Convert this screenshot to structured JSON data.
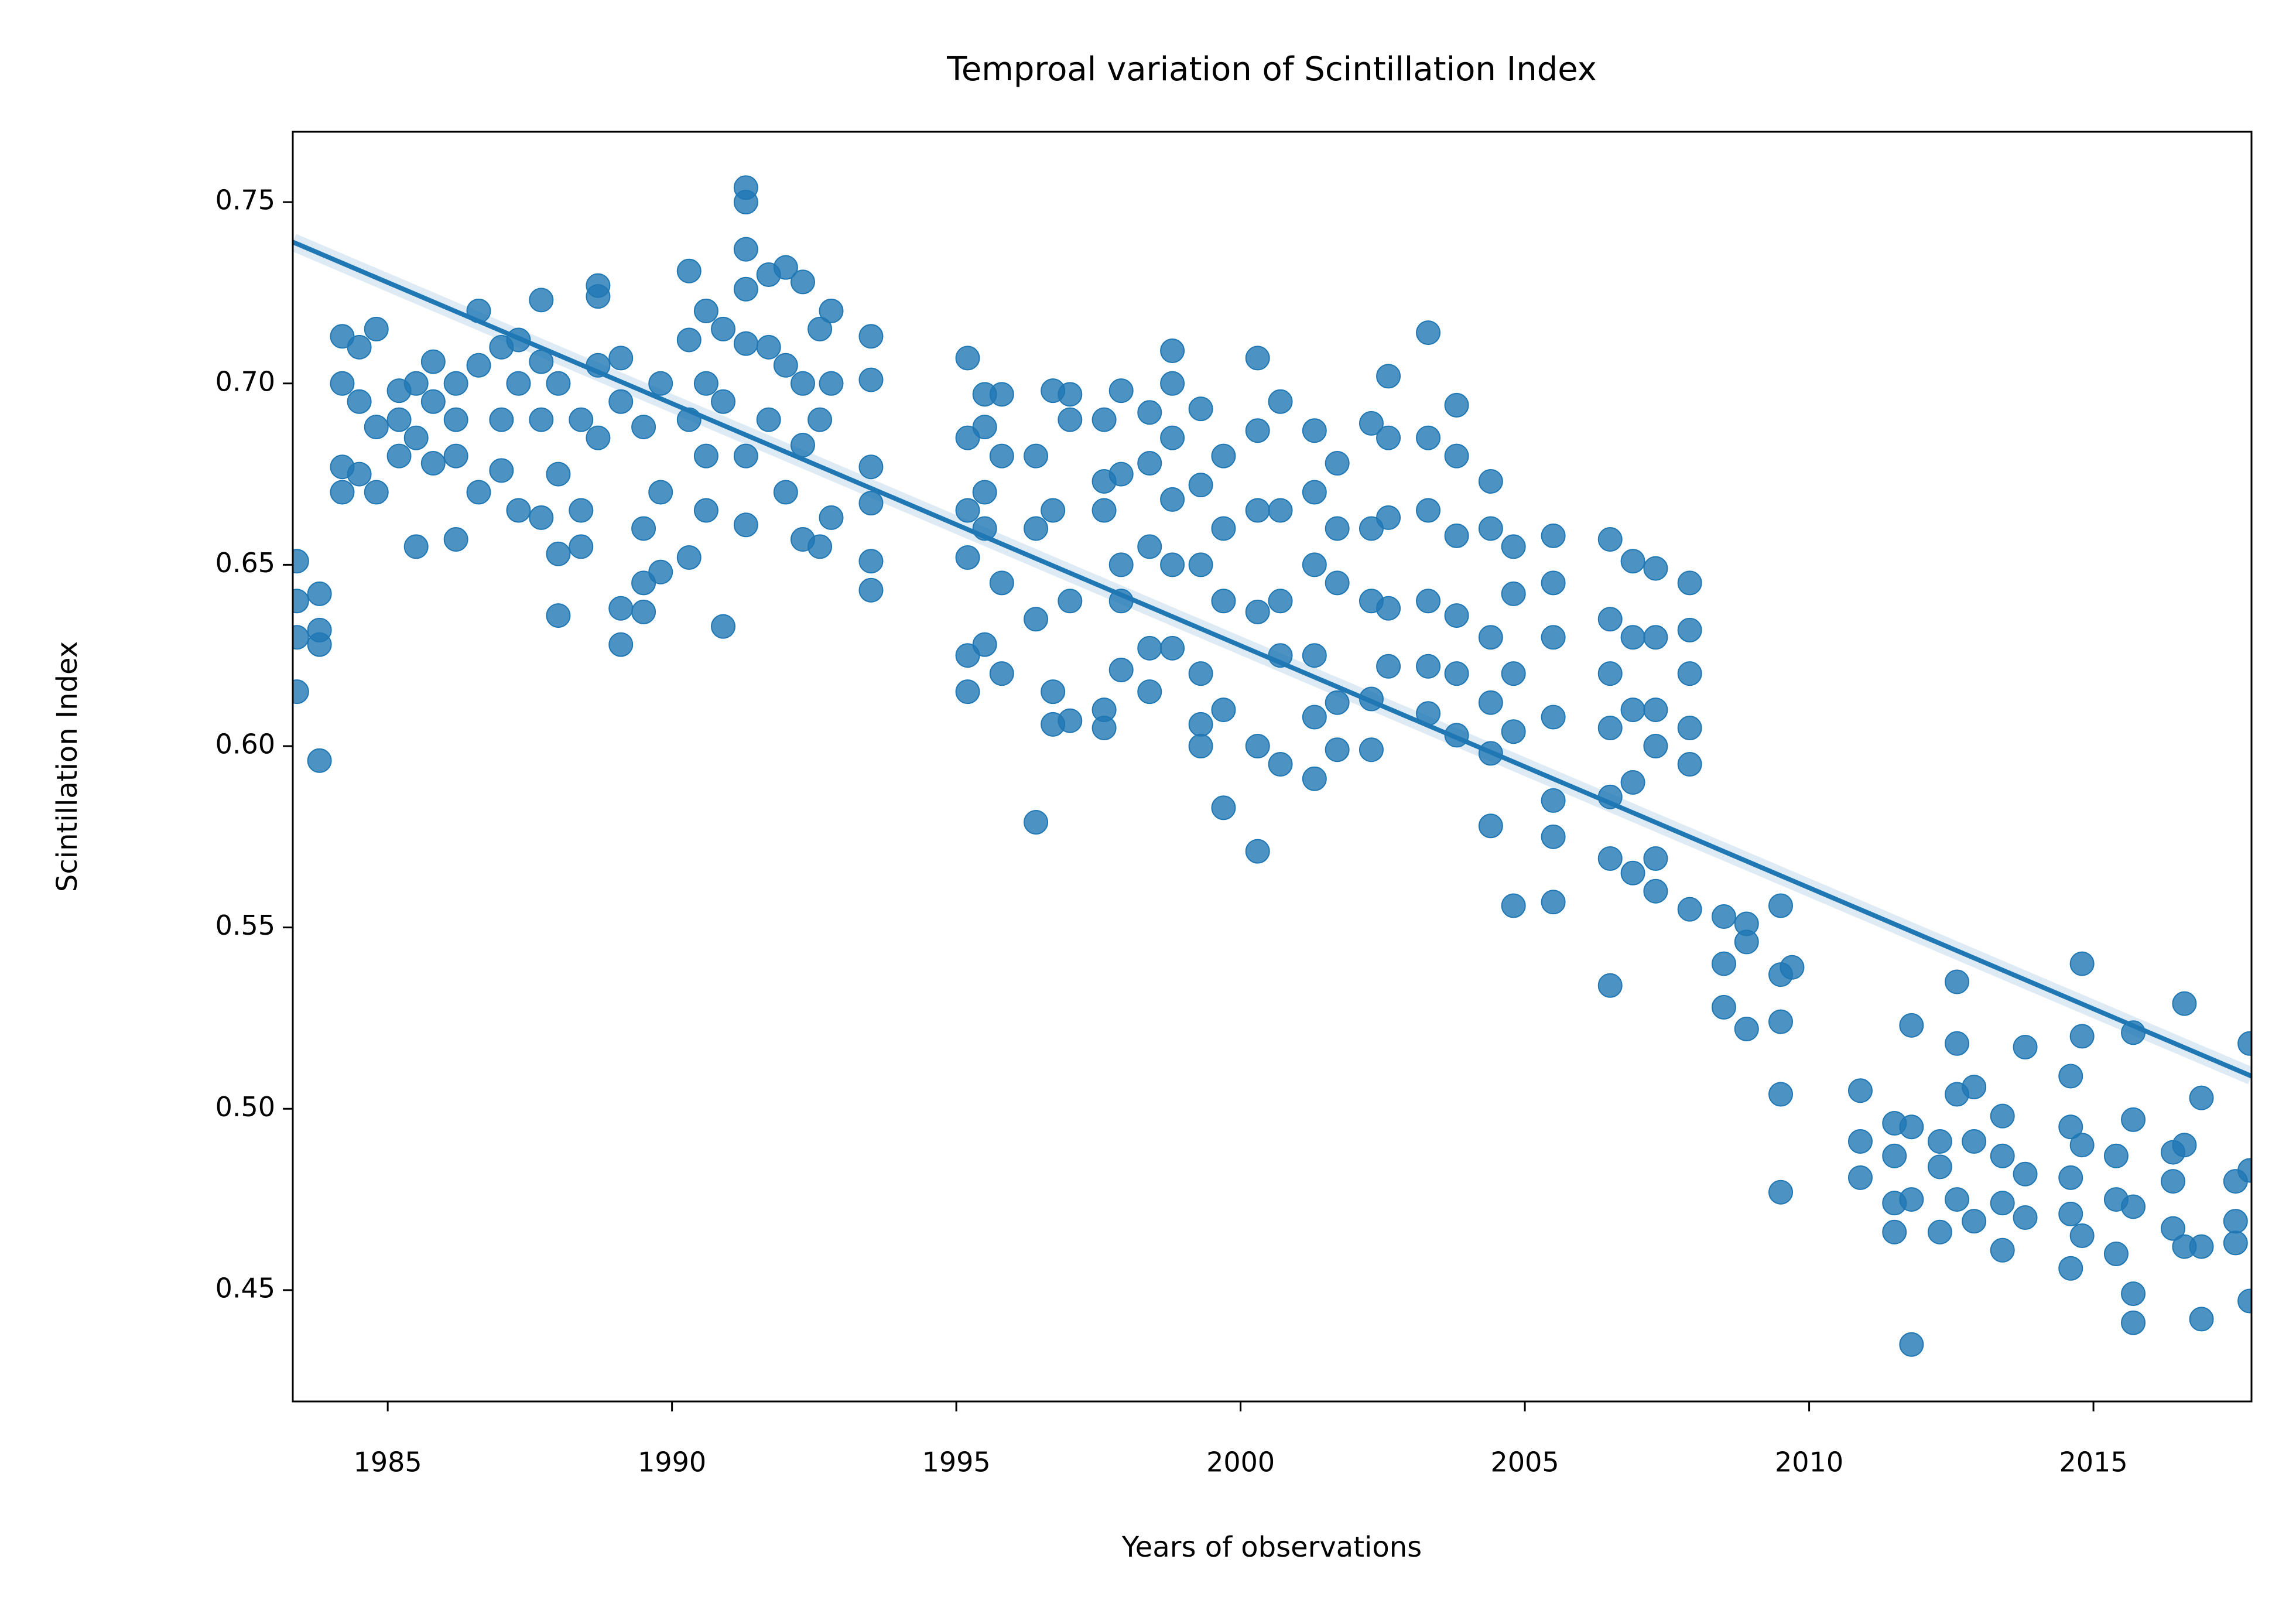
{
  "chart_data": {
    "type": "scatter",
    "title": "Temproal variation of Scintillation Index",
    "x_label": "Years of observations",
    "y_label": "Scintillation Index",
    "color": "#1f77b4",
    "xlim": [
      1983.33,
      2017.78
    ],
    "ylim": [
      0.4193,
      0.7694
    ],
    "xticks": [
      1985,
      1990,
      1995,
      2000,
      2005,
      2010,
      2015
    ],
    "yticks": [
      0.45,
      {
        "value": 0.5,
        "label": "0.50"
      },
      0.55,
      {
        "value": 0.6,
        "label": "0.60"
      },
      0.65,
      {
        "value": 0.7,
        "label": "0.70"
      },
      0.75
    ],
    "trend": {
      "x": [
        1983.33,
        2017.78
      ],
      "values": [
        0.739,
        0.509
      ]
    },
    "x": [
      1983.4,
      1983.4,
      1983.4,
      1983.4,
      1983.8,
      1983.8,
      1983.8,
      1983.8,
      1984.2,
      1984.2,
      1984.2,
      1984.2,
      1984.5,
      1984.5,
      1984.5,
      1984.8,
      1984.8,
      1984.8,
      1985.2,
      1985.2,
      1985.2,
      1985.5,
      1985.5,
      1985.5,
      1985.8,
      1985.8,
      1985.8,
      1986.2,
      1986.2,
      1986.2,
      1986.2,
      1986.6,
      1986.6,
      1986.6,
      1987,
      1987,
      1987,
      1987.3,
      1987.3,
      1987.3,
      1987.7,
      1987.7,
      1987.7,
      1987.7,
      1988,
      1988,
      1988,
      1988,
      1988.4,
      1988.4,
      1988.4,
      1988.7,
      1988.7,
      1988.7,
      1988.7,
      1989.1,
      1989.1,
      1989.1,
      1989.1,
      1989.5,
      1989.5,
      1989.5,
      1989.5,
      1989.8,
      1989.8,
      1989.8,
      1990.3,
      1990.3,
      1990.3,
      1990.3,
      1990.6,
      1990.6,
      1990.6,
      1990.6,
      1990.9,
      1990.9,
      1990.9,
      1991.3,
      1991.3,
      1991.3,
      1991.3,
      1991.3,
      1991.3,
      1991.3,
      1991.7,
      1991.7,
      1991.7,
      1992,
      1992,
      1992,
      1992.3,
      1992.3,
      1992.3,
      1992.3,
      1992.6,
      1992.6,
      1992.6,
      1992.8,
      1992.8,
      1992.8,
      1993.5,
      1993.5,
      1993.5,
      1993.5,
      1993.5,
      1993.5,
      1995.2,
      1995.2,
      1995.2,
      1995.2,
      1995.2,
      1995.2,
      1995.5,
      1995.5,
      1995.5,
      1995.5,
      1995.5,
      1995.8,
      1995.8,
      1995.8,
      1995.8,
      1996.4,
      1996.4,
      1996.4,
      1996.4,
      1996.7,
      1996.7,
      1996.7,
      1996.7,
      1997,
      1997,
      1997,
      1997,
      1997.6,
      1997.6,
      1997.6,
      1997.6,
      1997.6,
      1997.9,
      1997.9,
      1997.9,
      1997.9,
      1997.9,
      1998.4,
      1998.4,
      1998.4,
      1998.4,
      1998.4,
      1998.8,
      1998.8,
      1998.8,
      1998.8,
      1998.8,
      1998.8,
      1999.3,
      1999.3,
      1999.3,
      1999.3,
      1999.3,
      1999.3,
      1999.7,
      1999.7,
      1999.7,
      1999.7,
      1999.7,
      2000.3,
      2000.3,
      2000.3,
      2000.3,
      2000.3,
      2000.3,
      2000.7,
      2000.7,
      2000.7,
      2000.7,
      2000.7,
      2001.3,
      2001.3,
      2001.3,
      2001.3,
      2001.3,
      2001.3,
      2001.7,
      2001.7,
      2001.7,
      2001.7,
      2001.7,
      2002.3,
      2002.3,
      2002.3,
      2002.3,
      2002.3,
      2002.6,
      2002.6,
      2002.6,
      2002.6,
      2002.6,
      2003.3,
      2003.3,
      2003.3,
      2003.3,
      2003.3,
      2003.3,
      2003.8,
      2003.8,
      2003.8,
      2003.8,
      2003.8,
      2003.8,
      2004.4,
      2004.4,
      2004.4,
      2004.4,
      2004.4,
      2004.4,
      2004.8,
      2004.8,
      2004.8,
      2004.8,
      2004.8,
      2005.5,
      2005.5,
      2005.5,
      2005.5,
      2005.5,
      2005.5,
      2005.5,
      2006.5,
      2006.5,
      2006.5,
      2006.5,
      2006.5,
      2006.5,
      2006.5,
      2006.9,
      2006.9,
      2006.9,
      2006.9,
      2006.9,
      2007.3,
      2007.3,
      2007.3,
      2007.3,
      2007.3,
      2007.3,
      2007.9,
      2007.9,
      2007.9,
      2007.9,
      2007.9,
      2007.9,
      2008.5,
      2008.5,
      2008.5,
      2008.9,
      2008.9,
      2008.9,
      2009.5,
      2009.5,
      2009.5,
      2009.5,
      2009.5,
      2009.7,
      2010.9,
      2010.9,
      2010.9,
      2011.5,
      2011.5,
      2011.5,
      2011.5,
      2011.8,
      2011.8,
      2011.8,
      2011.8,
      2012.3,
      2012.3,
      2012.3,
      2012.6,
      2012.6,
      2012.6,
      2012.6,
      2012.9,
      2012.9,
      2012.9,
      2013.4,
      2013.4,
      2013.4,
      2013.4,
      2013.8,
      2013.8,
      2013.8,
      2014.6,
      2014.6,
      2014.6,
      2014.6,
      2014.6,
      2014.8,
      2014.8,
      2014.8,
      2014.8,
      2015.4,
      2015.4,
      2015.4,
      2015.7,
      2015.7,
      2015.7,
      2015.7,
      2015.7,
      2016.4,
      2016.4,
      2016.4,
      2016.6,
      2016.6,
      2016.6,
      2016.9,
      2016.9,
      2016.9,
      2017.5,
      2017.5,
      2017.5,
      2017.75,
      2017.75,
      2017.75
    ],
    "values": [
      0.651,
      0.64,
      0.63,
      0.615,
      0.596,
      0.642,
      0.632,
      0.628,
      0.713,
      0.7,
      0.677,
      0.67,
      0.71,
      0.695,
      0.675,
      0.715,
      0.688,
      0.67,
      0.698,
      0.68,
      0.69,
      0.655,
      0.7,
      0.685,
      0.706,
      0.678,
      0.695,
      0.657,
      0.7,
      0.68,
      0.69,
      0.72,
      0.705,
      0.67,
      0.71,
      0.69,
      0.676,
      0.665,
      0.7,
      0.712,
      0.723,
      0.706,
      0.663,
      0.69,
      0.636,
      0.653,
      0.675,
      0.7,
      0.655,
      0.665,
      0.69,
      0.727,
      0.724,
      0.705,
      0.685,
      0.707,
      0.695,
      0.628,
      0.638,
      0.66,
      0.645,
      0.688,
      0.637,
      0.7,
      0.67,
      0.648,
      0.731,
      0.712,
      0.69,
      0.652,
      0.72,
      0.7,
      0.68,
      0.665,
      0.633,
      0.715,
      0.695,
      0.75,
      0.754,
      0.737,
      0.726,
      0.711,
      0.661,
      0.68,
      0.73,
      0.71,
      0.69,
      0.732,
      0.705,
      0.67,
      0.728,
      0.7,
      0.657,
      0.683,
      0.715,
      0.69,
      0.655,
      0.72,
      0.7,
      0.663,
      0.713,
      0.701,
      0.677,
      0.667,
      0.651,
      0.643,
      0.707,
      0.685,
      0.665,
      0.652,
      0.625,
      0.615,
      0.697,
      0.688,
      0.67,
      0.628,
      0.66,
      0.697,
      0.68,
      0.645,
      0.62,
      0.579,
      0.68,
      0.635,
      0.66,
      0.698,
      0.665,
      0.615,
      0.606,
      0.697,
      0.69,
      0.64,
      0.607,
      0.673,
      0.69,
      0.665,
      0.61,
      0.605,
      0.698,
      0.675,
      0.65,
      0.64,
      0.621,
      0.692,
      0.678,
      0.655,
      0.615,
      0.627,
      0.709,
      0.7,
      0.685,
      0.668,
      0.65,
      0.627,
      0.693,
      0.672,
      0.65,
      0.62,
      0.6,
      0.606,
      0.68,
      0.66,
      0.64,
      0.61,
      0.583,
      0.707,
      0.687,
      0.665,
      0.637,
      0.6,
      0.571,
      0.695,
      0.665,
      0.64,
      0.625,
      0.595,
      0.687,
      0.67,
      0.65,
      0.625,
      0.608,
      0.591,
      0.678,
      0.66,
      0.645,
      0.612,
      0.599,
      0.689,
      0.66,
      0.64,
      0.613,
      0.599,
      0.702,
      0.685,
      0.663,
      0.638,
      0.622,
      0.714,
      0.685,
      0.665,
      0.64,
      0.622,
      0.609,
      0.694,
      0.68,
      0.658,
      0.636,
      0.62,
      0.603,
      0.673,
      0.66,
      0.63,
      0.612,
      0.598,
      0.578,
      0.655,
      0.642,
      0.62,
      0.604,
      0.556,
      0.658,
      0.645,
      0.63,
      0.608,
      0.585,
      0.575,
      0.557,
      0.657,
      0.635,
      0.62,
      0.605,
      0.586,
      0.569,
      0.534,
      0.651,
      0.63,
      0.61,
      0.59,
      0.565,
      0.649,
      0.63,
      0.61,
      0.6,
      0.569,
      0.56,
      0.645,
      0.632,
      0.62,
      0.605,
      0.595,
      0.555,
      0.553,
      0.54,
      0.528,
      0.551,
      0.546,
      0.522,
      0.556,
      0.537,
      0.524,
      0.504,
      0.477,
      0.539,
      0.505,
      0.491,
      0.481,
      0.496,
      0.487,
      0.474,
      0.466,
      0.523,
      0.495,
      0.475,
      0.435,
      0.491,
      0.484,
      0.466,
      0.535,
      0.518,
      0.504,
      0.475,
      0.506,
      0.491,
      0.469,
      0.498,
      0.487,
      0.474,
      0.461,
      0.517,
      0.482,
      0.47,
      0.509,
      0.495,
      0.481,
      0.471,
      0.456,
      0.54,
      0.52,
      0.49,
      0.465,
      0.487,
      0.475,
      0.46,
      0.521,
      0.497,
      0.473,
      0.449,
      0.441,
      0.488,
      0.48,
      0.467,
      0.529,
      0.49,
      0.462,
      0.503,
      0.462,
      0.442,
      0.48,
      0.469,
      0.463,
      0.518,
      0.483,
      0.447
    ]
  }
}
